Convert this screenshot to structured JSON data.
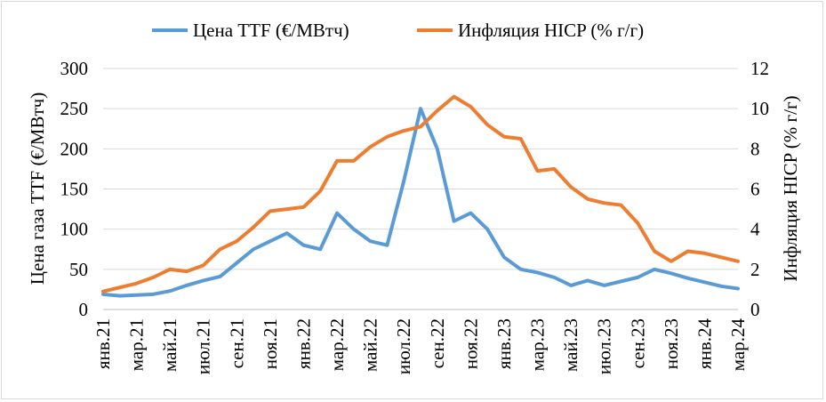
{
  "chart_data": {
    "type": "line",
    "categories": [
      "янв.21",
      "фев.21",
      "мар.21",
      "апр.21",
      "май.21",
      "июн.21",
      "июл.21",
      "авг.21",
      "сен.21",
      "окт.21",
      "ноя.21",
      "дек.21",
      "янв.22",
      "фев.22",
      "мар.22",
      "апр.22",
      "май.22",
      "июн.22",
      "июл.22",
      "авг.22",
      "сен.22",
      "окт.22",
      "ноя.22",
      "дек.22",
      "янв.23",
      "фев.23",
      "мар.23",
      "апр.23",
      "май.23",
      "июн.23",
      "июл.23",
      "авг.23",
      "сен.23",
      "окт.23",
      "ноя.23",
      "дек.23",
      "янв.24",
      "фев.24",
      "мар.24"
    ],
    "x_tick_labels": [
      "янв.21",
      "мар.21",
      "май.21",
      "июл.21",
      "сен.21",
      "ноя.21",
      "янв.22",
      "мар.22",
      "май.22",
      "июл.22",
      "сен.22",
      "ноя.22",
      "янв.23",
      "мар.23",
      "май.23",
      "июл.23",
      "сен.23",
      "ноя.23",
      "янв.24",
      "мар.24"
    ],
    "series": [
      {
        "name": "Цена TTF  (€/МВтч)",
        "axis": "left",
        "color": "#5B9BD5",
        "values": [
          19,
          17,
          18,
          19,
          23,
          30,
          36,
          41,
          58,
          75,
          85,
          95,
          80,
          75,
          120,
          100,
          85,
          80,
          160,
          250,
          200,
          110,
          120,
          100,
          65,
          50,
          46,
          40,
          30,
          36,
          30,
          35,
          40,
          50,
          45,
          39,
          34,
          29,
          26
        ]
      },
      {
        "name": "Инфляция HICP (% г/г)",
        "axis": "right",
        "color": "#ED7D31",
        "values": [
          0.9,
          1.1,
          1.3,
          1.6,
          2.0,
          1.9,
          2.2,
          3.0,
          3.4,
          4.1,
          4.9,
          5.0,
          5.1,
          5.9,
          7.4,
          7.4,
          8.1,
          8.6,
          8.9,
          9.1,
          9.9,
          10.6,
          10.1,
          9.2,
          8.6,
          8.5,
          6.9,
          7.0,
          6.1,
          5.5,
          5.3,
          5.2,
          4.3,
          2.9,
          2.4,
          2.9,
          2.8,
          2.6,
          2.4
        ]
      }
    ],
    "ylabel_left": "Цена газа TTF  (€/МВтч)",
    "ylabel_right": "Инфляция HICP (% г/г)",
    "ylim_left": [
      0,
      300
    ],
    "ylim_right": [
      0,
      12
    ],
    "yticks_left": [
      "0",
      "50",
      "100",
      "150",
      "200",
      "250",
      "300"
    ],
    "yticks_right": [
      "0",
      "2",
      "4",
      "6",
      "8",
      "10",
      "12"
    ],
    "grid": true,
    "legend_position": "top-center"
  }
}
